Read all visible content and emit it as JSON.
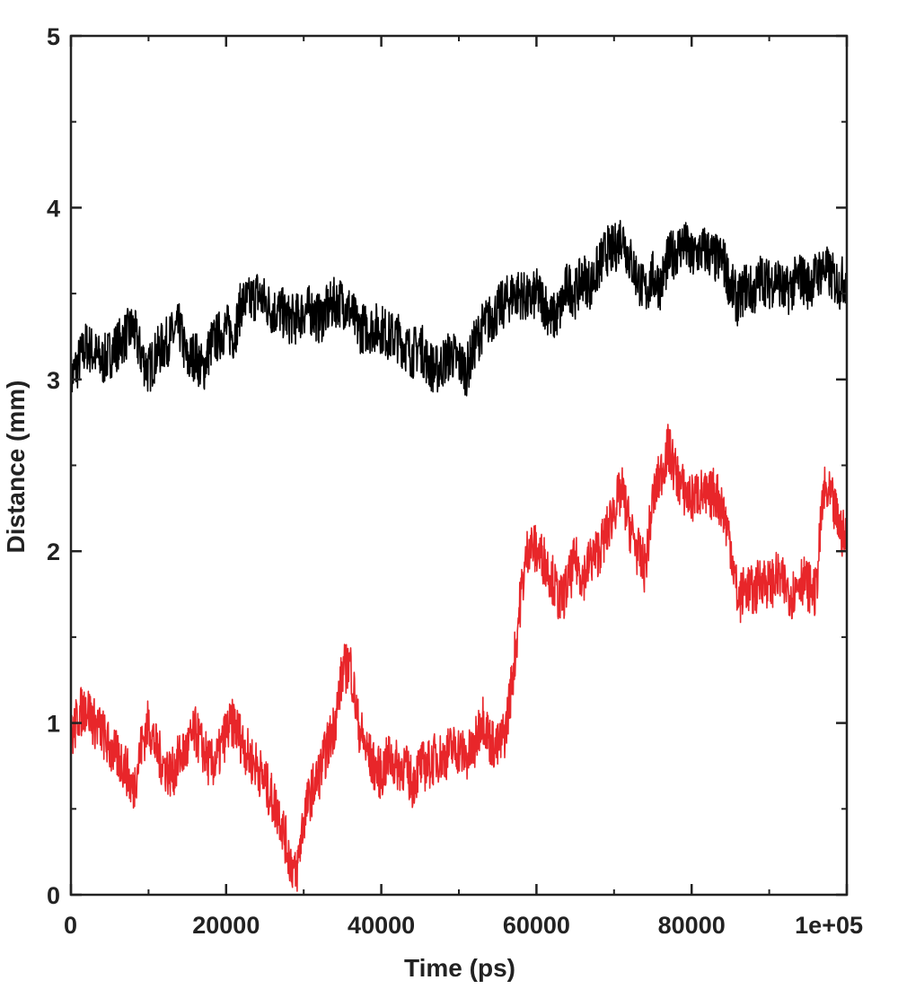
{
  "chart_data": {
    "type": "line",
    "title": "",
    "xlabel": "Time (ps)",
    "ylabel": "Distance (mm)",
    "xlim": [
      0,
      100000
    ],
    "ylim": [
      0,
      5
    ],
    "x_ticks": [
      {
        "value": 0,
        "label": "0"
      },
      {
        "value": 20000,
        "label": "20000"
      },
      {
        "value": 40000,
        "label": "40000"
      },
      {
        "value": 60000,
        "label": "60000"
      },
      {
        "value": 80000,
        "label": "80000"
      },
      {
        "value": 100000,
        "label": "1e+05"
      }
    ],
    "x_minor_ticks": [
      10000,
      30000,
      50000,
      70000,
      90000
    ],
    "y_ticks": [
      {
        "value": 0,
        "label": "0"
      },
      {
        "value": 1,
        "label": "1"
      },
      {
        "value": 2,
        "label": "2"
      },
      {
        "value": 3,
        "label": "3"
      },
      {
        "value": 4,
        "label": "4"
      },
      {
        "value": 5,
        "label": "5"
      }
    ],
    "y_minor_ticks": [
      0.5,
      1.5,
      2.5,
      3.5,
      4.5
    ],
    "grid": false,
    "legend": "none",
    "series": [
      {
        "color": "#000000",
        "x": [
          0,
          1000,
          2000,
          3000,
          4000,
          5000,
          6000,
          7000,
          8000,
          9000,
          10000,
          11000,
          12000,
          13000,
          14000,
          15000,
          16000,
          17000,
          18000,
          19000,
          20000,
          21000,
          22000,
          23000,
          24000,
          25000,
          26000,
          27000,
          28000,
          29000,
          30000,
          31000,
          32000,
          33000,
          34000,
          35000,
          36000,
          37000,
          38000,
          39000,
          40000,
          41000,
          42000,
          43000,
          44000,
          45000,
          46000,
          47000,
          48000,
          49000,
          50000,
          51000,
          52000,
          53000,
          54000,
          55000,
          56000,
          57000,
          58000,
          59000,
          60000,
          61000,
          62000,
          63000,
          64000,
          65000,
          66000,
          67000,
          68000,
          69000,
          70000,
          71000,
          72000,
          73000,
          74000,
          75000,
          76000,
          77000,
          78000,
          79000,
          80000,
          81000,
          82000,
          83000,
          84000,
          85000,
          86000,
          87000,
          88000,
          89000,
          90000,
          91000,
          92000,
          93000,
          94000,
          95000,
          96000,
          97000,
          98000,
          99000,
          100000
        ],
        "y": [
          3.0,
          3.1,
          3.2,
          3.15,
          3.1,
          3.15,
          3.2,
          3.25,
          3.3,
          3.15,
          3.05,
          3.15,
          3.2,
          3.25,
          3.3,
          3.1,
          3.15,
          3.05,
          3.2,
          3.25,
          3.3,
          3.25,
          3.45,
          3.45,
          3.5,
          3.45,
          3.4,
          3.4,
          3.35,
          3.35,
          3.4,
          3.4,
          3.35,
          3.4,
          3.45,
          3.45,
          3.4,
          3.3,
          3.3,
          3.3,
          3.3,
          3.25,
          3.25,
          3.2,
          3.15,
          3.2,
          3.1,
          3.05,
          3.1,
          3.15,
          3.1,
          3.05,
          3.2,
          3.3,
          3.35,
          3.4,
          3.45,
          3.5,
          3.5,
          3.45,
          3.5,
          3.45,
          3.35,
          3.4,
          3.55,
          3.5,
          3.6,
          3.55,
          3.65,
          3.75,
          3.75,
          3.85,
          3.7,
          3.6,
          3.5,
          3.6,
          3.55,
          3.7,
          3.75,
          3.8,
          3.7,
          3.75,
          3.75,
          3.7,
          3.7,
          3.55,
          3.45,
          3.55,
          3.5,
          3.6,
          3.55,
          3.6,
          3.5,
          3.55,
          3.6,
          3.55,
          3.6,
          3.65,
          3.6,
          3.55,
          3.6
        ]
      },
      {
        "color": "#e8262a",
        "x": [
          0,
          1000,
          2000,
          3000,
          4000,
          5000,
          6000,
          7000,
          8000,
          9000,
          10000,
          11000,
          12000,
          13000,
          14000,
          15000,
          16000,
          17000,
          18000,
          19000,
          20000,
          21000,
          22000,
          23000,
          24000,
          25000,
          26000,
          27000,
          28000,
          29000,
          30000,
          31000,
          32000,
          33000,
          34000,
          35000,
          36000,
          37000,
          38000,
          39000,
          40000,
          41000,
          42000,
          43000,
          44000,
          45000,
          46000,
          47000,
          48000,
          49000,
          50000,
          51000,
          52000,
          53000,
          54000,
          55000,
          56000,
          57000,
          58000,
          59000,
          60000,
          61000,
          62000,
          63000,
          64000,
          65000,
          66000,
          67000,
          68000,
          69000,
          70000,
          71000,
          72000,
          73000,
          74000,
          75000,
          76000,
          77000,
          78000,
          79000,
          80000,
          81000,
          82000,
          83000,
          84000,
          85000,
          86000,
          87000,
          88000,
          89000,
          90000,
          91000,
          92000,
          93000,
          94000,
          95000,
          96000,
          97000,
          98000,
          99000,
          100000
        ],
        "y": [
          0.9,
          1.05,
          1.1,
          1.0,
          0.95,
          0.85,
          0.8,
          0.75,
          0.6,
          0.85,
          1.0,
          0.85,
          0.75,
          0.7,
          0.8,
          0.85,
          0.95,
          0.85,
          0.75,
          0.8,
          0.95,
          1.0,
          0.9,
          0.8,
          0.75,
          0.65,
          0.55,
          0.45,
          0.25,
          0.1,
          0.45,
          0.6,
          0.7,
          0.85,
          1.0,
          1.3,
          1.35,
          1.0,
          0.85,
          0.75,
          0.7,
          0.8,
          0.75,
          0.75,
          0.65,
          0.75,
          0.75,
          0.8,
          0.8,
          0.85,
          0.85,
          0.8,
          0.85,
          1.05,
          0.9,
          0.85,
          0.95,
          1.3,
          1.75,
          2.05,
          2.0,
          1.95,
          1.85,
          1.7,
          1.8,
          1.95,
          1.85,
          1.95,
          2.0,
          2.1,
          2.25,
          2.35,
          2.15,
          2.0,
          1.9,
          2.3,
          2.45,
          2.6,
          2.45,
          2.35,
          2.3,
          2.35,
          2.3,
          2.35,
          2.25,
          2.05,
          1.7,
          1.8,
          1.75,
          1.85,
          1.8,
          1.85,
          1.8,
          1.75,
          1.85,
          1.8,
          1.75,
          2.35,
          2.3,
          2.15,
          2.05
        ]
      }
    ]
  }
}
